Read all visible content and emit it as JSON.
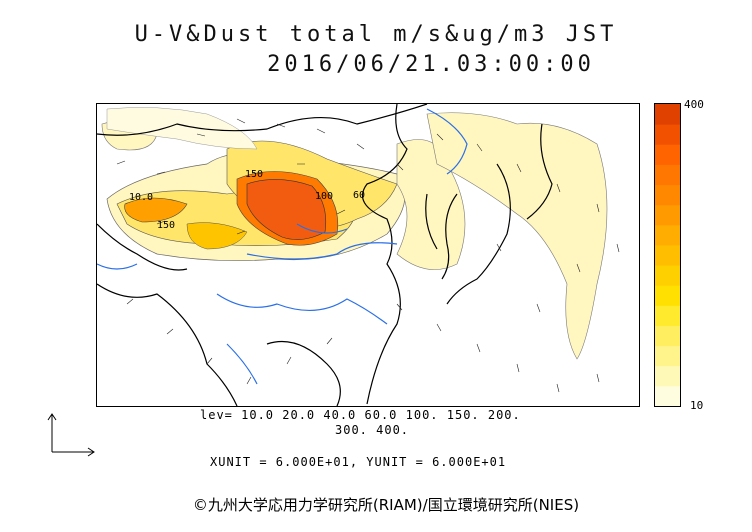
{
  "header": {
    "title": "U-V&Dust total m/s&ug/m3 JST",
    "datetime": "2016/06/21.03:00:00"
  },
  "colorbar": {
    "max_label": "400",
    "min_label": "10",
    "colors": [
      "#fffde0",
      "#fff9b8",
      "#fff38c",
      "#ffee60",
      "#ffea2e",
      "#ffe000",
      "#ffd000",
      "#ffbf00",
      "#ffad00",
      "#ff9a00",
      "#ff8800",
      "#ff7600",
      "#ff6400",
      "#f25200",
      "#e04000"
    ]
  },
  "contour_labels": [
    "10.0",
    "150",
    "150",
    "100",
    "60"
  ],
  "levels": {
    "line1": "lev= 10.0 20.0 40.0 60.0 100. 150. 200.",
    "line2": "300. 400."
  },
  "units": "XUNIT = 6.000E+01, YUNIT = 6.000E+01",
  "credit": "©九州大学応用力学研究所(RIAM)/国立環境研究所(NIES)"
}
